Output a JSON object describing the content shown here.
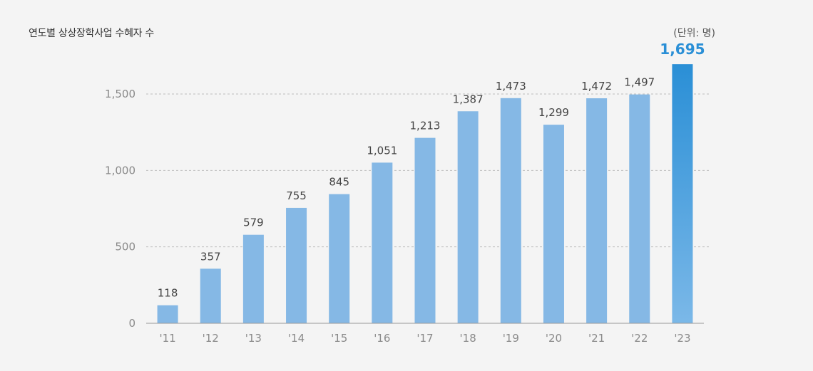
{
  "chart_data": {
    "type": "bar",
    "title": "연도별 상상장학사업 수혜자 수",
    "unit_label": "(단위: 명)",
    "categories": [
      "'11",
      "'12",
      "'13",
      "'14",
      "'15",
      "'16",
      "'17",
      "'18",
      "'19",
      "'20",
      "'21",
      "'22",
      "'23"
    ],
    "values": [
      118,
      357,
      579,
      755,
      845,
      1051,
      1213,
      1387,
      1473,
      1299,
      1472,
      1497,
      1695
    ],
    "value_labels": [
      "118",
      "357",
      "579",
      "755",
      "845",
      "1,051",
      "1,213",
      "1,387",
      "1,473",
      "1,299",
      "1,472",
      "1,497",
      "1,695"
    ],
    "yticks": [
      0,
      500,
      1000,
      1500
    ],
    "ytick_labels": [
      "0",
      "500",
      "1,000",
      "1,500"
    ],
    "ylim": [
      0,
      1500
    ],
    "grid": true,
    "highlight_index": 12,
    "colors": {
      "bar": "#85b8e5",
      "highlight_top": "#2a8fd6",
      "highlight_bottom": "#7bb8e8",
      "highlight_label": "#2a8fd6",
      "grid": "#bdbdbd",
      "axis": "#999999"
    }
  }
}
